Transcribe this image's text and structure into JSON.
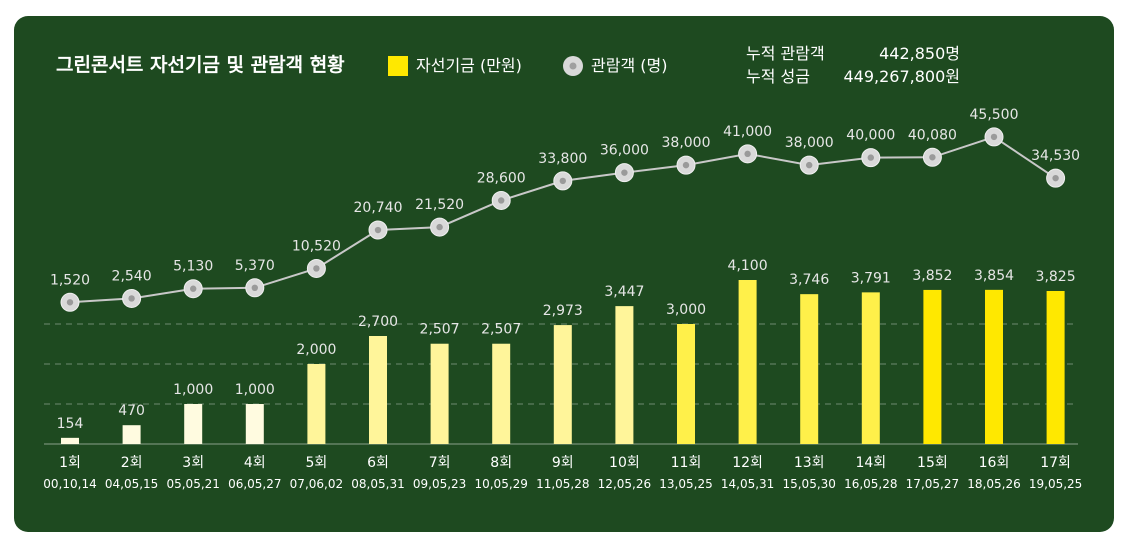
{
  "title": "그린콘서트 자선기금 및 관람객 현황",
  "legend": {
    "fund": "자선기금 (만원)",
    "audience": "관람객 (명)"
  },
  "cumulative": {
    "audience_label": "누적 관람객",
    "audience_value": "442,850명",
    "fund_label": "누적 성금",
    "fund_value": "449,267,800원"
  },
  "colors": {
    "background": "#1e4a20",
    "bar_light": "#fffbe0",
    "bar_dark": "#ffe800",
    "line": "#c8c8c8",
    "marker": "#d9d9d9"
  },
  "chart_data": {
    "type": "bar",
    "categories": [
      "1회",
      "2회",
      "3회",
      "4회",
      "5회",
      "6회",
      "7회",
      "8회",
      "9회",
      "10회",
      "11회",
      "12회",
      "13회",
      "14회",
      "15회",
      "16회",
      "17회"
    ],
    "dates": [
      "00,10,14",
      "04,05,15",
      "05,05,21",
      "06,05,27",
      "07,06,02",
      "08,05,31",
      "09,05,23",
      "10,05,29",
      "11,05,28",
      "12,05,26",
      "13,05,25",
      "14,05,31",
      "15,05,30",
      "16,05,28",
      "17,05,27",
      "18,05,26",
      "19,05,25"
    ],
    "series": [
      {
        "name": "자선기금 (만원)",
        "type": "bar",
        "values": [
          154,
          470,
          1000,
          1000,
          2000,
          2700,
          2507,
          2507,
          2973,
          3447,
          3000,
          4100,
          3746,
          3791,
          3852,
          3854,
          3825
        ],
        "labels": [
          "154",
          "470",
          "1,000",
          "1,000",
          "2,000",
          "2,700",
          "2,507",
          "2,507",
          "2,973",
          "3,447",
          "3,000",
          "4,100",
          "3,746",
          "3,791",
          "3,852",
          "3,854",
          "3,825"
        ]
      },
      {
        "name": "관람객 (명)",
        "type": "line",
        "values": [
          1520,
          2540,
          5130,
          5370,
          10520,
          20740,
          21520,
          28600,
          33800,
          36000,
          38000,
          41000,
          38000,
          40000,
          40080,
          45500,
          34530
        ],
        "labels": [
          "1,520",
          "2,540",
          "5,130",
          "5,370",
          "10,520",
          "20,740",
          "21,520",
          "28,600",
          "33,800",
          "36,000",
          "38,000",
          "41,000",
          "38,000",
          "40,000",
          "40,080",
          "45,500",
          "34,530"
        ]
      }
    ],
    "grid": "dashed",
    "legend_position": "top"
  }
}
